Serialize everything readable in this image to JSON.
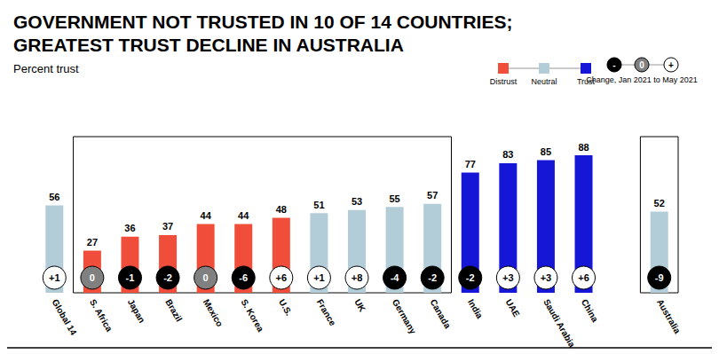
{
  "chart_data": {
    "type": "bar",
    "title": "GOVERNMENT NOT TRUSTED IN 10 OF 14 COUNTRIES;\nGREATEST TRUST DECLINE IN AUSTRALIA",
    "subtitle": "Percent trust",
    "categories": [
      "Global 14",
      "S. Africa",
      "Japan",
      "Brazil",
      "Mexico",
      "S. Korea",
      "U.S.",
      "France",
      "UK",
      "Germany",
      "Canada",
      "India",
      "UAE",
      "Saudi Arabia",
      "China",
      null,
      "Australia"
    ],
    "values": [
      56,
      27,
      36,
      37,
      44,
      44,
      48,
      51,
      53,
      55,
      57,
      77,
      83,
      85,
      88,
      null,
      52
    ],
    "colors": [
      "#b3cdd8",
      "#f04e3b",
      "#f04e3b",
      "#f04e3b",
      "#f04e3b",
      "#f04e3b",
      "#f04e3b",
      "#b3cdd8",
      "#b3cdd8",
      "#b3cdd8",
      "#b3cdd8",
      "#1616d6",
      "#1616d6",
      "#1616d6",
      "#1616d6",
      null,
      "#b3cdd8"
    ],
    "changes": [
      1,
      0,
      -1,
      -2,
      0,
      -6,
      6,
      1,
      8,
      -4,
      -2,
      -2,
      3,
      3,
      6,
      null,
      -9
    ],
    "change_labels": [
      "+1",
      "0",
      "-1",
      "-2",
      "0",
      "-6",
      "+6",
      "+1",
      "+8",
      "-4",
      "-2",
      "-2",
      "+3",
      "+3",
      "+6",
      null,
      "-9"
    ],
    "groups": [
      {
        "from": "S. Africa",
        "to": "Canada"
      },
      {
        "from": "Australia",
        "to": "Australia"
      }
    ],
    "key": {
      "items": [
        {
          "name": "Distrust",
          "color": "#f04e3b"
        },
        {
          "name": "Neutral",
          "color": "#b3cdd8"
        },
        {
          "name": "Trust",
          "color": "#1616d6"
        }
      ],
      "change_title": "Change, Jan 2021 to May 2021",
      "change_symbols": [
        "-",
        "0",
        "+"
      ],
      "change_colors": [
        "#000000",
        "#808080",
        "#ffffff"
      ]
    },
    "ylim": [
      0,
      100
    ],
    "data_labels": true,
    "tick_labels": "x",
    "grid": false
  }
}
